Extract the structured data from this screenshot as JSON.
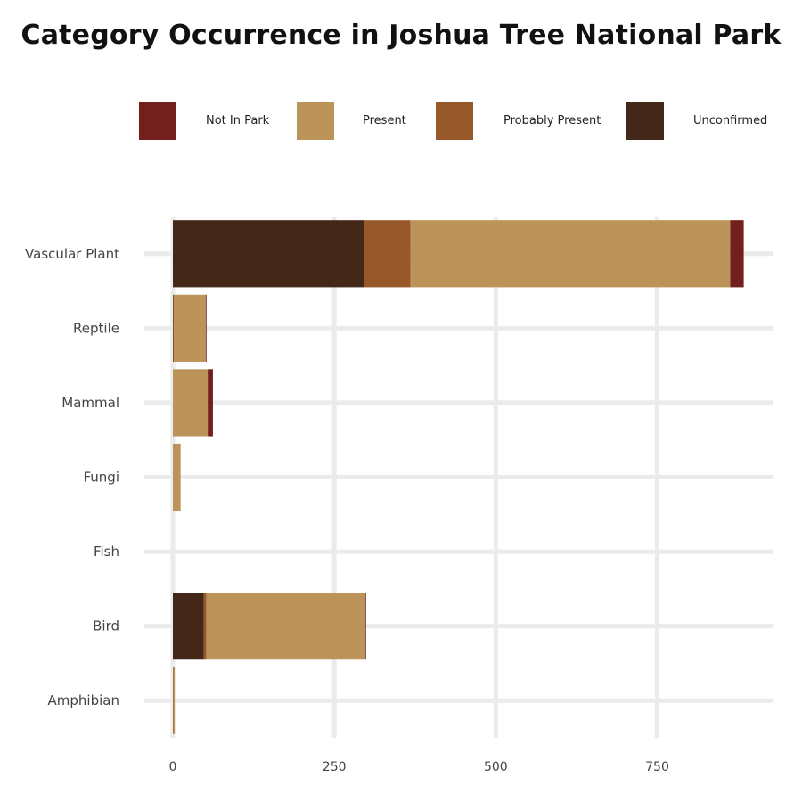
{
  "chart_data": {
    "type": "bar",
    "orientation": "horizontal",
    "stacked": true,
    "title": "Category Occurrence in Joshua Tree National Park",
    "xlabel": "",
    "ylabel": "",
    "categories": [
      "Vascular Plant",
      "Reptile",
      "Mammal",
      "Fungi",
      "Fish",
      "Bird",
      "Amphibian"
    ],
    "x_ticks": [
      0,
      250,
      500,
      750
    ],
    "xlim": [
      -45,
      930
    ],
    "grid": true,
    "legend_position": "top",
    "stack_order": [
      "Unconfirmed",
      "Probably Present",
      "Present",
      "Not In Park"
    ],
    "series": [
      {
        "name": "Not In Park",
        "color": "#731f1c",
        "values": [
          21,
          1,
          8,
          0,
          0,
          1,
          0
        ]
      },
      {
        "name": "Present",
        "color": "#bc9459",
        "values": [
          495,
          50,
          54,
          12,
          0,
          246,
          2
        ]
      },
      {
        "name": "Probably Present",
        "color": "#98592a",
        "values": [
          72,
          0,
          0,
          0,
          0,
          4,
          1
        ]
      },
      {
        "name": "Unconfirmed",
        "color": "#432819",
        "values": [
          296,
          1,
          0,
          0,
          0,
          48,
          0
        ]
      }
    ]
  }
}
